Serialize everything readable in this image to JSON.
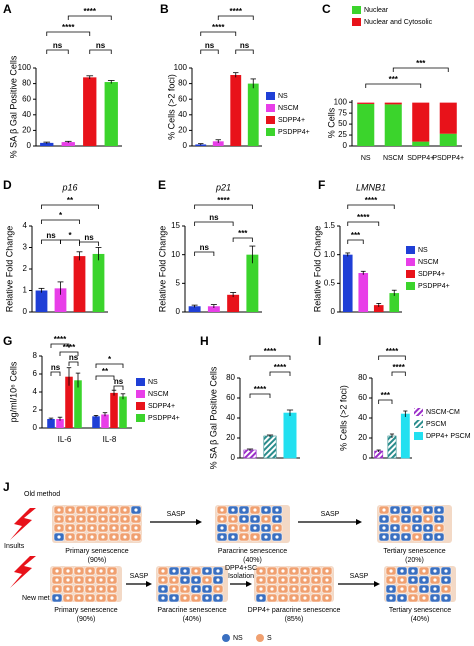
{
  "figure_labels": [
    "A",
    "B",
    "C",
    "D",
    "E",
    "F",
    "G",
    "H",
    "I",
    "J"
  ],
  "chart_data": [
    {
      "type": "bar",
      "ylabel": "% SA β Gal  Positive Cells",
      "values": [
        4,
        5,
        88,
        82
      ],
      "errors": [
        1,
        1,
        2,
        2
      ],
      "colors": [
        "#1f3fd6",
        "#e83ee8",
        "#e8121a",
        "#3bd42c"
      ],
      "ylim": [
        0,
        100
      ],
      "yticks": [
        0,
        20,
        40,
        60,
        80,
        100
      ],
      "annotations": [
        "****",
        "****",
        "ns",
        "ns"
      ]
    },
    {
      "type": "bar",
      "ylabel": "% Cells (>2 foci)",
      "categories": [
        "NS",
        "NSCM",
        "SDPP4+",
        "PSDPP4+"
      ],
      "values": [
        2,
        6,
        91,
        80
      ],
      "errors": [
        1,
        2,
        3,
        6
      ],
      "colors": [
        "#1f3fd6",
        "#e83ee8",
        "#e8121a",
        "#3bd42c"
      ],
      "ylim": [
        0,
        100
      ],
      "yticks": [
        0,
        20,
        40,
        60,
        80,
        100
      ],
      "annotations": [
        "****",
        "****",
        "ns",
        "ns"
      ]
    },
    {
      "type": "stacked_bar",
      "ylabel": "% Cells",
      "categories": [
        "NS",
        "NSCM",
        "SDPP4+",
        "PSDPP4+"
      ],
      "series": [
        {
          "name": "Nuclear",
          "color": "#3bd42c",
          "values": [
            96,
            95,
            10,
            28
          ]
        },
        {
          "name": "Nuclear and Cytosolic",
          "color": "#e8121a",
          "values": [
            3,
            4,
            89,
            71
          ]
        }
      ],
      "ylim": [
        0,
        105
      ],
      "yticks": [
        0,
        25,
        50,
        75,
        100
      ],
      "annotations": [
        "***",
        "***"
      ]
    },
    {
      "type": "bar",
      "title": "p16",
      "ylabel": "Relative Fold Change",
      "values": [
        1.0,
        1.1,
        2.6,
        2.7
      ],
      "errors": [
        0.1,
        0.3,
        0.2,
        0.3
      ],
      "colors": [
        "#1f3fd6",
        "#e83ee8",
        "#e8121a",
        "#3bd42c"
      ],
      "ylim": [
        0,
        4
      ],
      "yticks": [
        0,
        1,
        2,
        3,
        4
      ],
      "annotations": [
        "**",
        "*",
        "ns",
        "*",
        "ns"
      ]
    },
    {
      "type": "bar",
      "title": "p21",
      "ylabel": "Relative Fold Change",
      "values": [
        1,
        1,
        3,
        10
      ],
      "errors": [
        0.2,
        0.3,
        0.4,
        1.5
      ],
      "colors": [
        "#1f3fd6",
        "#e83ee8",
        "#e8121a",
        "#3bd42c"
      ],
      "ylim": [
        0,
        15
      ],
      "yticks": [
        0,
        5,
        10,
        15
      ],
      "annotations": [
        "****",
        "ns",
        "***",
        "ns"
      ]
    },
    {
      "type": "bar",
      "title": "LMNB1",
      "ylabel": "Relative Fold Change",
      "categories": [
        "NS",
        "NSCM",
        "SDPP4+",
        "PSDPP4+"
      ],
      "values": [
        1.0,
        0.68,
        0.12,
        0.33
      ],
      "errors": [
        0.03,
        0.03,
        0.03,
        0.05
      ],
      "colors": [
        "#1f3fd6",
        "#e83ee8",
        "#e8121a",
        "#3bd42c"
      ],
      "ylim": [
        0,
        1.5
      ],
      "yticks": [
        0,
        0.5,
        {
          "value": 1,
          "label": "1.0"
        },
        1.5
      ],
      "annotations": [
        "****",
        "****",
        "***"
      ]
    },
    {
      "type": "grouped_bar",
      "ylabel": "pg/ml/10⁶ Cells",
      "categories": [
        "IL-6",
        "IL-8"
      ],
      "series": [
        {
          "name": "NS",
          "color": "#1f3fd6",
          "values": [
            1.0,
            1.3
          ],
          "errors": [
            0.1,
            0.1
          ]
        },
        {
          "name": "NSCM",
          "color": "#e83ee8",
          "values": [
            1.0,
            1.5
          ],
          "errors": [
            0.2,
            0.2
          ]
        },
        {
          "name": "SDPP4+",
          "color": "#e8121a",
          "values": [
            5.7,
            3.9
          ],
          "errors": [
            1.0,
            0.3
          ]
        },
        {
          "name": "PSDPP4+",
          "color": "#3bd42c",
          "values": [
            5.3,
            3.5
          ],
          "errors": [
            0.8,
            0.3
          ]
        }
      ],
      "ylim": [
        0,
        8
      ],
      "yticks": [
        0,
        2,
        4,
        6,
        8
      ],
      "annotations": [
        "****",
        "ns",
        "****",
        "ns",
        "*",
        "**",
        "ns"
      ]
    },
    {
      "type": "bar",
      "ylabel": "% SA β Gal Positive Cells",
      "values": [
        8,
        22,
        45
      ],
      "errors": [
        1,
        1,
        3
      ],
      "colors": [
        "#9b30c8",
        "#2a8c8c",
        "#22e0f0"
      ],
      "hatch": [
        true,
        true,
        false
      ],
      "ylim": [
        0,
        80
      ],
      "yticks": [
        0,
        20,
        40,
        60,
        80
      ],
      "annotations": [
        "****",
        "****",
        "****"
      ]
    },
    {
      "type": "bar",
      "ylabel": "% Cells (>2 foci)",
      "categories": [
        "NSCM-CM",
        "PSCM",
        "DPP4+ PSCM"
      ],
      "values": [
        7,
        22,
        44
      ],
      "errors": [
        1,
        2,
        3
      ],
      "colors": [
        "#9b30c8",
        "#2a8c8c",
        "#22e0f0"
      ],
      "hatch": [
        true,
        true,
        false
      ],
      "ylim": [
        0,
        80
      ],
      "yticks": [
        0,
        20,
        40,
        60,
        80
      ],
      "annotations": [
        "****",
        "****",
        "***"
      ]
    }
  ],
  "diagram": {
    "insults": "Insults",
    "rows": [
      {
        "label": "Old method",
        "steps": [
          {
            "title": "Primary senescence",
            "pct": "(90%)"
          },
          {
            "title": "Paracrine senescence",
            "pct": "(40%)"
          },
          {
            "title": "Tertiary senescence",
            "pct": "(20%)"
          }
        ],
        "arrows": [
          [
            "SASP"
          ],
          [
            "SASP"
          ]
        ]
      },
      {
        "label": "New method",
        "steps": [
          {
            "title": "Primary senescence",
            "pct": "(90%)"
          },
          {
            "title": "Paracrine senescence",
            "pct": "(40%)"
          },
          {
            "title": "DPP4+ paracrine senescence",
            "pct": "(85%)"
          },
          {
            "title": "Tertiary senescence",
            "pct": "(40%)"
          }
        ],
        "arrows": [
          [
            "SASP"
          ],
          [
            "DPP4+SC",
            "Isolation"
          ],
          [
            "SASP"
          ]
        ]
      }
    ],
    "legend": [
      "NS",
      "S"
    ]
  }
}
